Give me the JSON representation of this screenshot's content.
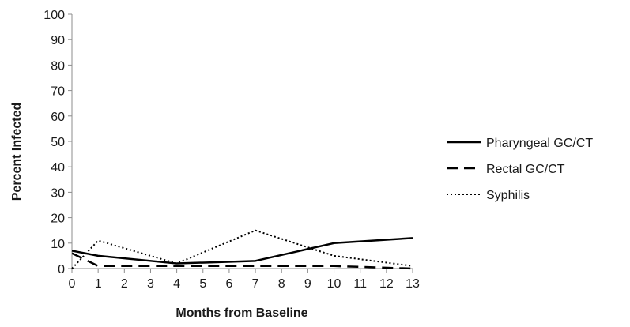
{
  "chart_data": {
    "type": "line",
    "x_ticks": [
      "0",
      "1",
      "2",
      "3",
      "4",
      "5",
      "6",
      "7",
      "8",
      "9",
      "10",
      "11",
      "12",
      "13"
    ],
    "y_ticks": [
      "0",
      "10",
      "20",
      "30",
      "40",
      "50",
      "60",
      "70",
      "80",
      "90",
      "100"
    ],
    "xlabel": "Months from Baseline",
    "ylabel": "Percent Infected",
    "xlim": [
      0,
      13
    ],
    "ylim": [
      0,
      100
    ],
    "grid": false,
    "legend_position": "right",
    "series": [
      {
        "name": "Pharyngeal GC/CT",
        "style": "solid",
        "color": "#000000",
        "x": [
          0,
          1,
          4,
          7,
          10,
          13
        ],
        "values": [
          7,
          5,
          2,
          3,
          10,
          12
        ]
      },
      {
        "name": "Rectal GC/CT",
        "style": "dashed",
        "color": "#000000",
        "x": [
          0,
          1,
          4,
          7,
          10,
          13
        ],
        "values": [
          6,
          1,
          1,
          1,
          1,
          0
        ]
      },
      {
        "name": "Syphilis",
        "style": "dotted",
        "color": "#000000",
        "x": [
          0,
          1,
          4,
          7,
          10,
          13
        ],
        "values": [
          0,
          11,
          2,
          15,
          5,
          1
        ]
      }
    ]
  }
}
